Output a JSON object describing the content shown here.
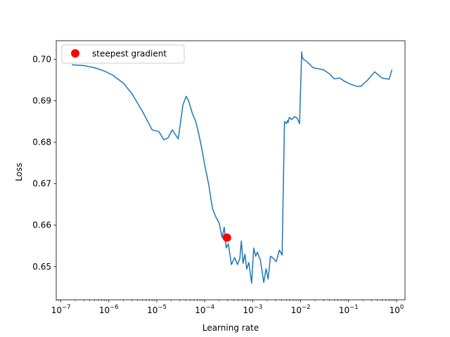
{
  "chart_data": {
    "type": "line",
    "title": "",
    "xlabel": "Learning rate",
    "ylabel": "Loss",
    "x_scale": "log",
    "xlim": [
      8e-08,
      1.5
    ],
    "ylim": [
      0.642,
      0.7045
    ],
    "x_ticks": [
      1e-07,
      1e-06,
      1e-05,
      0.0001,
      0.001,
      0.01,
      0.1,
      1
    ],
    "x_tick_labels": [
      {
        "base": "10",
        "exp": "−7"
      },
      {
        "base": "10",
        "exp": "−6"
      },
      {
        "base": "10",
        "exp": "−5"
      },
      {
        "base": "10",
        "exp": "−4"
      },
      {
        "base": "10",
        "exp": "−3"
      },
      {
        "base": "10",
        "exp": "−2"
      },
      {
        "base": "10",
        "exp": "−1"
      },
      {
        "base": "10",
        "exp": "0"
      }
    ],
    "y_ticks": [
      0.65,
      0.66,
      0.67,
      0.68,
      0.69,
      0.7
    ],
    "y_tick_labels": [
      "0.65",
      "0.66",
      "0.67",
      "0.68",
      "0.69",
      "0.70"
    ],
    "grid": false,
    "legend": {
      "position": "top-left",
      "entries": [
        {
          "label": "steepest gradient",
          "color": "#ff0000",
          "marker": "circle"
        }
      ]
    },
    "series": [
      {
        "name": "",
        "color": "#1f77b4",
        "x": [
          1.7e-07,
          3e-07,
          5e-07,
          8e-07,
          1.2e-06,
          2e-06,
          3e-06,
          5e-06,
          8e-06,
          1.1e-05,
          1.4e-05,
          1.7e-05,
          2.1e-05,
          2.4e-05,
          2.8e-05,
          3.5e-05,
          4.1e-05,
          4.6e-05,
          5.5e-05,
          6.5e-05,
          7.5e-05,
          8.5e-05,
          0.0001,
          0.00012,
          0.000145,
          0.00017,
          0.0002,
          0.00023,
          0.000255,
          0.00028,
          0.00031,
          0.00036,
          0.00042,
          0.00048,
          0.00054,
          0.00058,
          0.00063,
          0.00069,
          0.00075,
          0.00083,
          0.00095,
          0.00105,
          0.00115,
          0.00125,
          0.00145,
          0.0017,
          0.0019,
          0.0021,
          0.00235,
          0.0027,
          0.0031,
          0.0036,
          0.0041,
          0.0046,
          0.0051,
          0.0053,
          0.0055,
          0.0058,
          0.0065,
          0.0075,
          0.0085,
          0.0095,
          0.0105,
          0.0108,
          0.0115,
          0.014,
          0.018,
          0.022,
          0.03,
          0.04,
          0.05,
          0.065,
          0.08,
          0.11,
          0.15,
          0.18,
          0.25,
          0.35,
          0.5,
          0.7,
          0.8
        ],
        "y": [
          0.6987,
          0.6985,
          0.698,
          0.6972,
          0.6962,
          0.6943,
          0.6918,
          0.6875,
          0.683,
          0.6826,
          0.6806,
          0.681,
          0.683,
          0.682,
          0.6808,
          0.689,
          0.6911,
          0.69,
          0.687,
          0.685,
          0.682,
          0.679,
          0.6745,
          0.67,
          0.664,
          0.662,
          0.6605,
          0.657,
          0.6595,
          0.6545,
          0.6555,
          0.6505,
          0.6522,
          0.6505,
          0.652,
          0.6562,
          0.6508,
          0.653,
          0.6494,
          0.651,
          0.646,
          0.6545,
          0.6525,
          0.6535,
          0.6515,
          0.6462,
          0.6495,
          0.647,
          0.6525,
          0.652,
          0.6512,
          0.654,
          0.6528,
          0.685,
          0.6845,
          0.6852,
          0.6848,
          0.686,
          0.6855,
          0.6862,
          0.6858,
          0.6845,
          0.7018,
          0.7005,
          0.7,
          0.6993,
          0.698,
          0.6978,
          0.6975,
          0.6965,
          0.6953,
          0.6955,
          0.6948,
          0.694,
          0.6935,
          0.6935,
          0.695,
          0.697,
          0.6955,
          0.6952,
          0.6975
        ]
      },
      {
        "name": "steepest gradient",
        "type": "scatter",
        "color": "#ff0000",
        "x": [
          0.00029
        ],
        "y": [
          0.657
        ]
      }
    ]
  }
}
